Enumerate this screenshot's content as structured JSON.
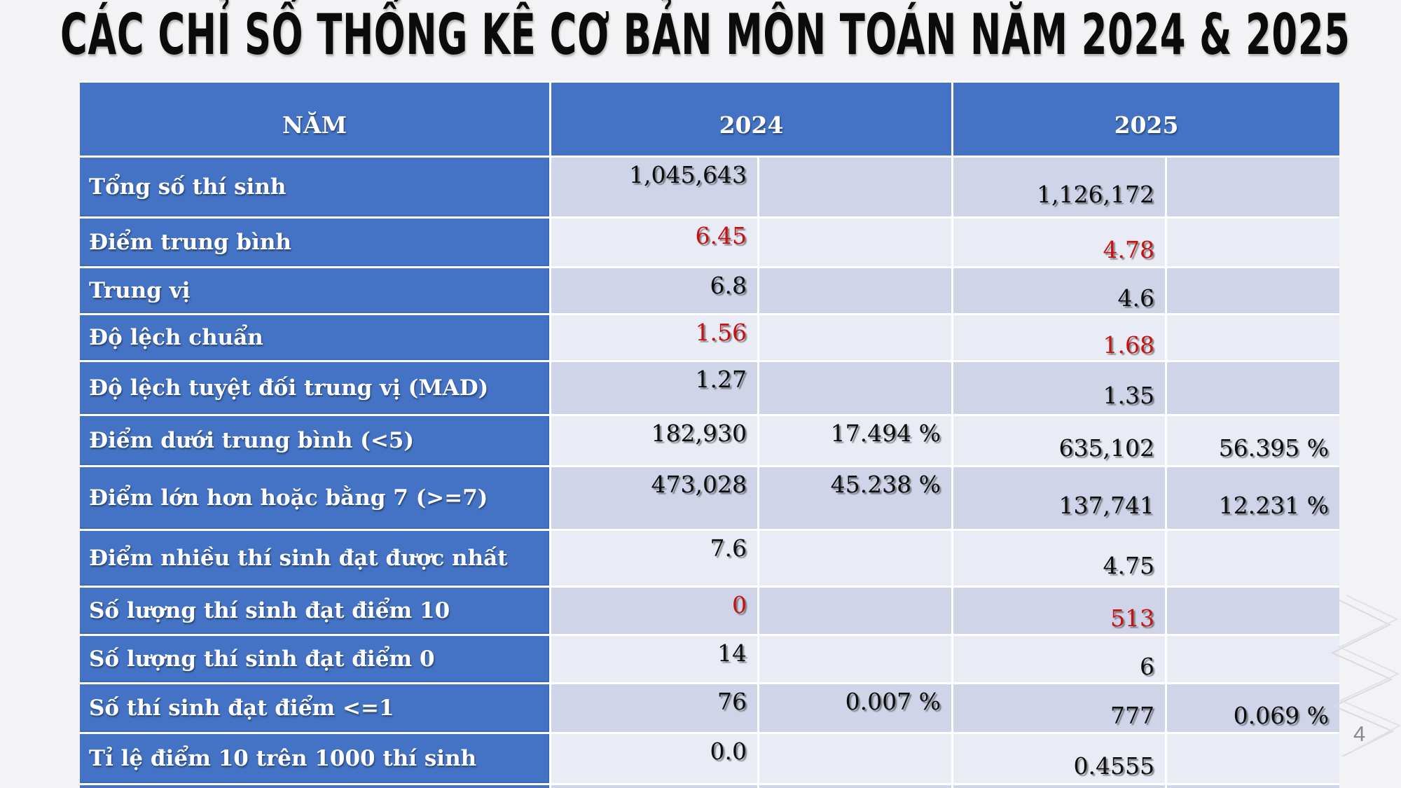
{
  "slide": {
    "title": "CÁC CHỈ SỐ THỐNG KÊ CƠ BẢN MÔN TOÁN NĂM 2024 & 2025",
    "page_number": "4"
  },
  "colors": {
    "header_blue": "#4472C4",
    "band_dark": "#CFD4E8",
    "band_light": "#E9EBF5",
    "accent_red": "#C81212",
    "background": "#F3F3F5"
  },
  "table": {
    "header": {
      "col_label": "NĂM",
      "col_2024": "2024",
      "col_2025": "2025"
    },
    "columns": [
      "NĂM",
      "2024 value",
      "2024 percent",
      "2025 value",
      "2025 percent"
    ],
    "rows": [
      {
        "label": "Tổng số thí sinh",
        "v2024": "1,045,643",
        "p2024": "",
        "v2025": "1,126,172",
        "p2025": "",
        "red": false
      },
      {
        "label": "Điểm trung bình",
        "v2024": "6.45",
        "p2024": "",
        "v2025": "4.78",
        "p2025": "",
        "red": true
      },
      {
        "label": "Trung vị",
        "v2024": "6.8",
        "p2024": "",
        "v2025": "4.6",
        "p2025": "",
        "red": false
      },
      {
        "label": "Độ lệch chuẩn",
        "v2024": "1.56",
        "p2024": "",
        "v2025": "1.68",
        "p2025": "",
        "red": true
      },
      {
        "label": "Độ lệch tuyệt đối trung vị (MAD)",
        "v2024": "1.27",
        "p2024": "",
        "v2025": "1.35",
        "p2025": "",
        "red": false
      },
      {
        "label": "Điểm dưới trung bình (<5)",
        "v2024": "182,930",
        "p2024": "17.494 %",
        "v2025": "635,102",
        "p2025": "56.395 %",
        "red": false
      },
      {
        "label": "Điểm lớn hơn hoặc bằng 7 (>=7)",
        "v2024": "473,028",
        "p2024": "45.238 %",
        "v2025": "137,741",
        "p2025": "12.231 %",
        "red": false
      },
      {
        "label": "Điểm nhiều thí sinh đạt được nhất",
        "v2024": "7.6",
        "p2024": "",
        "v2025": "4.75",
        "p2025": "",
        "red": false
      },
      {
        "label": "Số lượng thí sinh đạt điểm 10",
        "v2024": "0",
        "p2024": "",
        "v2025": "513",
        "p2025": "",
        "red": true
      },
      {
        "label": "Số lượng thí sinh đạt điểm 0",
        "v2024": "14",
        "p2024": "",
        "v2025": "6",
        "p2025": "",
        "red": false
      },
      {
        "label": "Số thí sinh đạt điểm <=1",
        "v2024": "76",
        "p2024": "0.007 %",
        "v2025": "777",
        "p2025": "0.069 %",
        "red": false
      },
      {
        "label": "Tỉ lệ điểm 10 trên 1000 thí sinh",
        "v2024": "0.0",
        "p2024": "",
        "v2025": "0.4555",
        "p2025": "",
        "red": false
      }
    ]
  }
}
